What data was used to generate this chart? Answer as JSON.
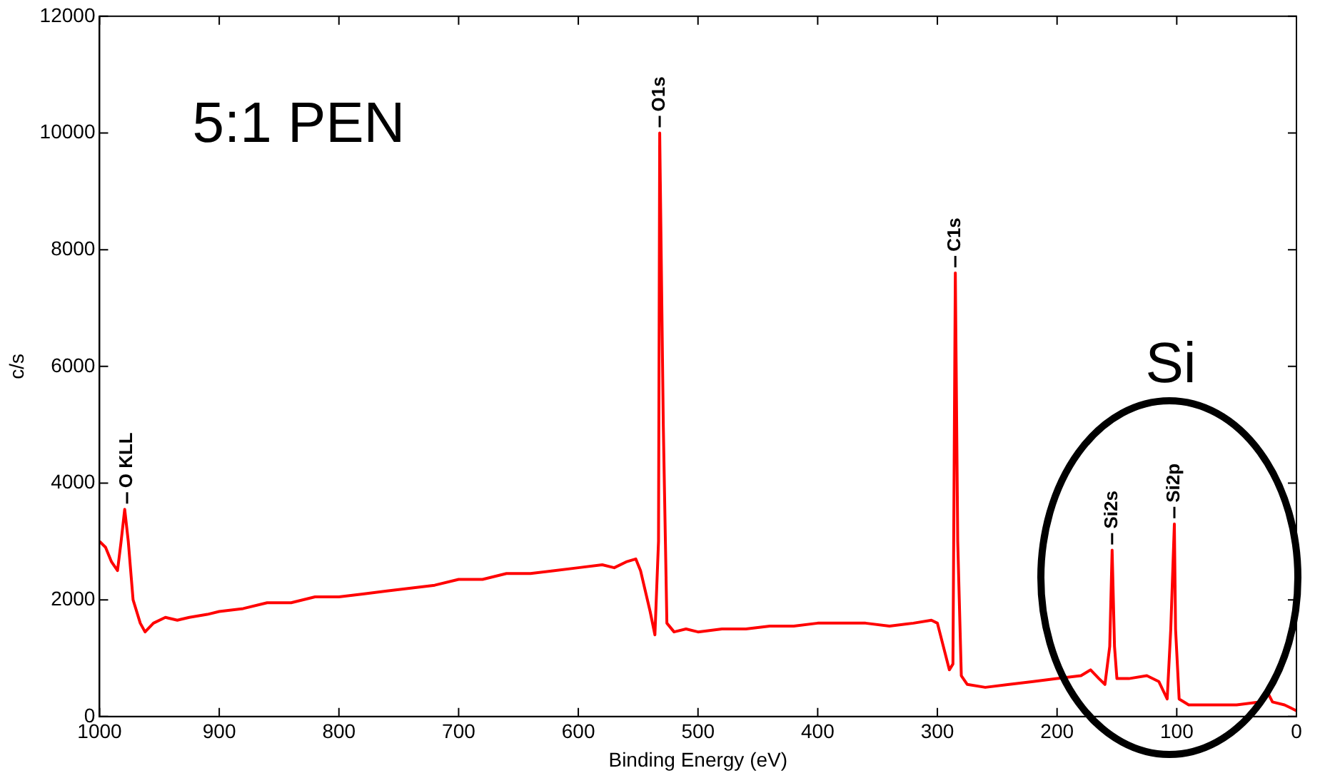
{
  "chart_data": {
    "type": "line",
    "xlabel": "Binding Energy (eV)",
    "ylabel": "c/s",
    "xlim": [
      1000,
      0
    ],
    "xticks": [
      1000,
      900,
      800,
      700,
      600,
      500,
      400,
      300,
      200,
      100,
      0
    ],
    "ylim": [
      0,
      12000
    ],
    "yticks": [
      0,
      2000,
      4000,
      6000,
      8000,
      10000,
      12000
    ],
    "grid": false,
    "legend": false,
    "marker": "none",
    "line_style": "solid",
    "series": [
      {
        "color": "#ff0000",
        "x": [
          1000,
          995,
          990,
          985,
          982,
          979,
          976,
          972,
          966,
          962,
          955,
          945,
          935,
          925,
          910,
          900,
          880,
          860,
          840,
          820,
          800,
          780,
          760,
          740,
          720,
          700,
          680,
          660,
          640,
          620,
          600,
          580,
          570,
          560,
          552,
          548,
          540,
          536,
          533,
          532,
          529,
          526,
          520,
          510,
          500,
          480,
          460,
          440,
          420,
          400,
          380,
          360,
          340,
          320,
          305,
          300,
          295,
          290,
          287,
          285,
          283,
          280,
          275,
          260,
          240,
          220,
          200,
          180,
          172,
          165,
          160,
          156,
          154,
          152,
          150,
          140,
          125,
          115,
          108,
          105,
          102,
          101,
          98,
          90,
          70,
          50,
          30,
          25,
          20,
          10,
          5,
          0
        ],
        "values": [
          3000,
          2900,
          2650,
          2500,
          3000,
          3550,
          3000,
          2000,
          1600,
          1450,
          1600,
          1700,
          1650,
          1700,
          1750,
          1800,
          1850,
          1950,
          1950,
          2050,
          2050,
          2100,
          2150,
          2200,
          2250,
          2350,
          2350,
          2450,
          2450,
          2500,
          2550,
          2600,
          2550,
          2650,
          2700,
          2500,
          1800,
          1400,
          3000,
          10000,
          5000,
          1600,
          1450,
          1500,
          1450,
          1500,
          1500,
          1550,
          1550,
          1600,
          1600,
          1600,
          1550,
          1600,
          1650,
          1600,
          1200,
          800,
          900,
          7600,
          3000,
          700,
          550,
          500,
          550,
          600,
          650,
          700,
          800,
          650,
          550,
          1200,
          2850,
          1200,
          650,
          650,
          700,
          600,
          300,
          1500,
          3300,
          1500,
          300,
          200,
          200,
          200,
          250,
          450,
          250,
          200,
          150,
          100
        ]
      }
    ],
    "annotations": [
      "5:1 PEN",
      "Si",
      {
        "text": "O KLL",
        "x": 977,
        "y": 3550
      },
      {
        "text": "O1s",
        "x": 532,
        "y": 10000
      },
      {
        "text": "C1s",
        "x": 285,
        "y": 7600
      },
      {
        "text": "Si2s",
        "x": 154,
        "y": 2850
      },
      {
        "text": "Si2p",
        "x": 102,
        "y": 3300
      }
    ]
  }
}
